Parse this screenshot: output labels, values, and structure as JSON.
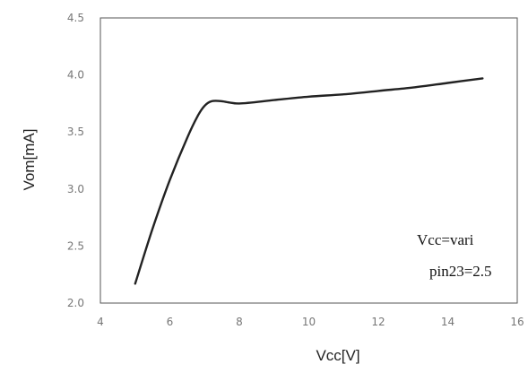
{
  "chart_data": {
    "type": "line",
    "title": "",
    "xlabel": "Vcc[V]",
    "ylabel": "Vom[mA]",
    "xlim": [
      4,
      16
    ],
    "ylim": [
      2.0,
      4.5
    ],
    "xticks": [
      4,
      6,
      8,
      10,
      12,
      14,
      16
    ],
    "yticks": [
      "2.0",
      "2.5",
      "3.0",
      "3.5",
      "4.0",
      "4.5"
    ],
    "grid": false,
    "legend": "none",
    "annotations": [
      "Vcc=vari",
      "pin23=2.5"
    ],
    "series": [
      {
        "color": "#222222",
        "x": [
          5.0,
          5.5,
          6.0,
          6.5,
          6.8,
          7.0,
          7.2,
          7.5,
          8.0,
          9.0,
          10.0,
          11.0,
          12.0,
          13.0,
          14.0,
          15.0
        ],
        "y": [
          2.17,
          2.65,
          3.08,
          3.45,
          3.64,
          3.73,
          3.77,
          3.77,
          3.75,
          3.78,
          3.81,
          3.83,
          3.86,
          3.89,
          3.93,
          3.97
        ]
      }
    ]
  }
}
